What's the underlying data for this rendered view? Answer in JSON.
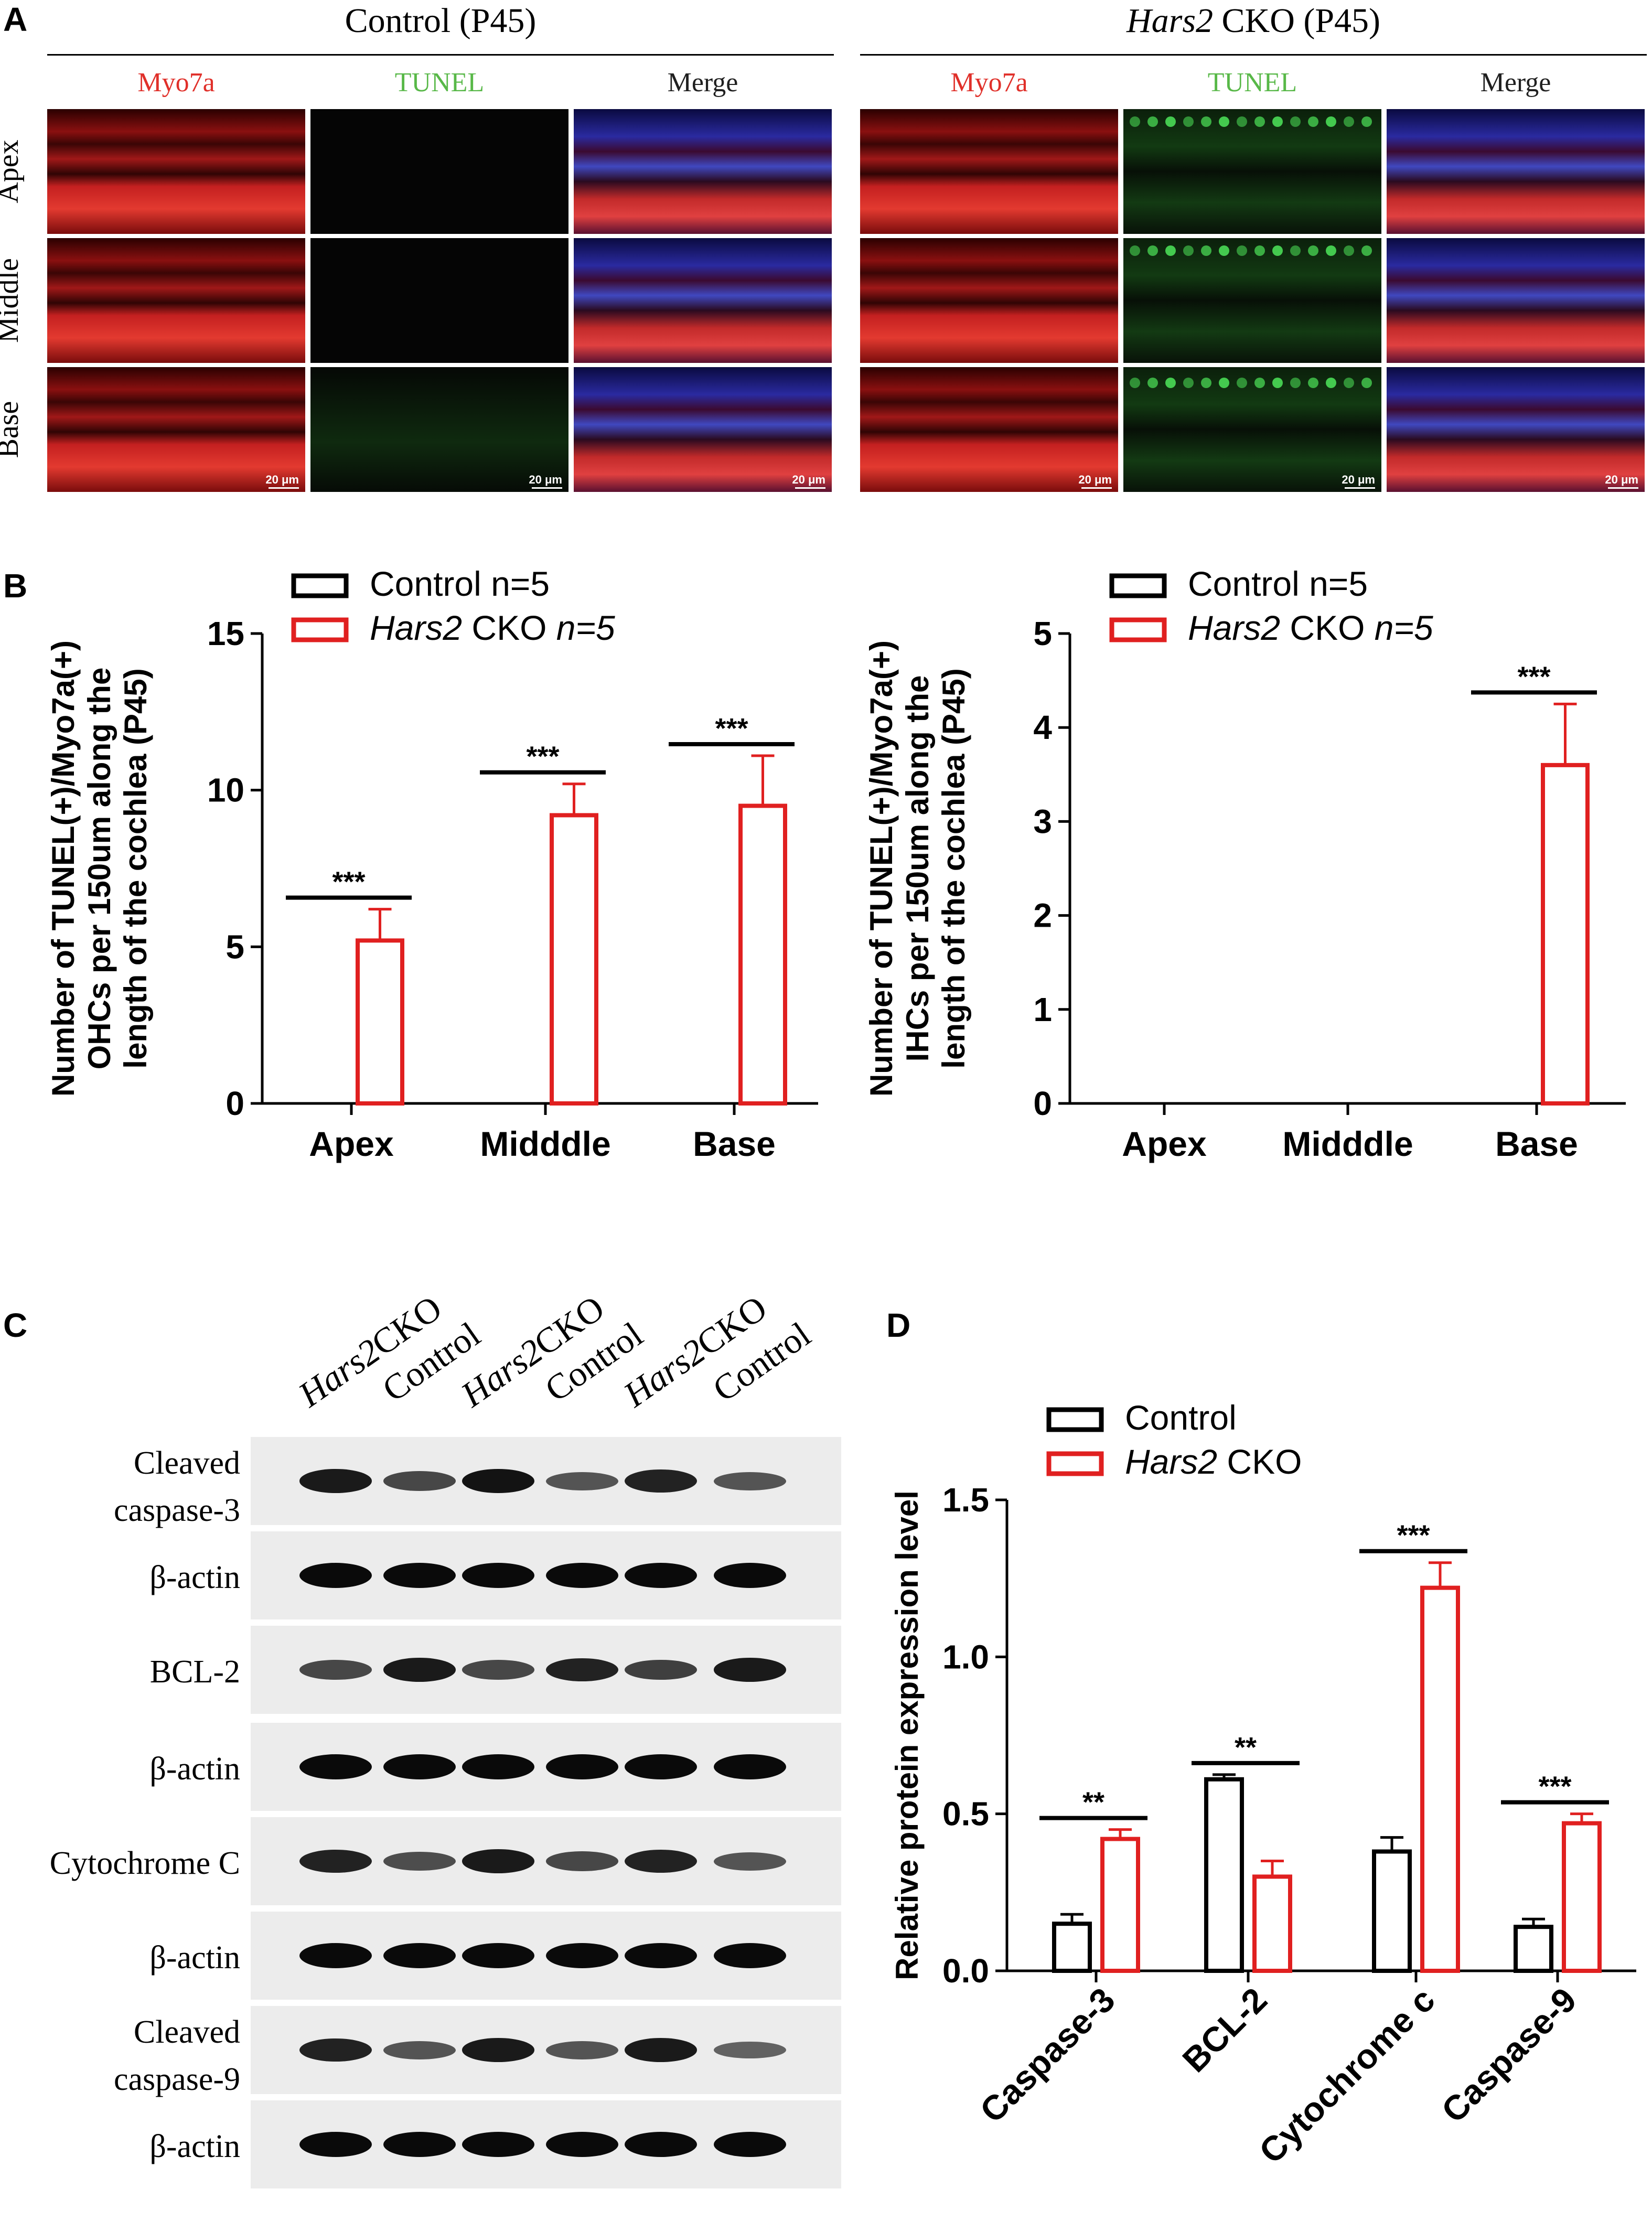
{
  "panels": {
    "a": "A",
    "b": "B",
    "c": "C",
    "d": "D"
  },
  "panel_a": {
    "groups": [
      {
        "title_plain": "Control (P45)"
      },
      {
        "title_italic": "Hars2",
        "title_rest": " CKO (P45)"
      }
    ],
    "columns": [
      "Myo7a",
      "TUNEL",
      "Merge"
    ],
    "rows": [
      "Apex",
      "Middle",
      "Base"
    ],
    "scale_bar": "20 μm",
    "colors": {
      "myo7a": "#e0302a",
      "tunel": "#58b848",
      "merge": "#202020"
    }
  },
  "panel_c": {
    "lanes": [
      {
        "italic": "Hars2",
        "rest": "CKO"
      },
      {
        "italic": "",
        "rest": "Control"
      },
      {
        "italic": "Hars2",
        "rest": "CKO"
      },
      {
        "italic": "",
        "rest": "Control"
      },
      {
        "italic": "Hars2",
        "rest": "CKO"
      },
      {
        "italic": "",
        "rest": "Control"
      }
    ],
    "blots": [
      {
        "label_line1": "Cleaved",
        "label_line2": "caspase-3",
        "intensity": [
          0.9,
          0.6,
          0.95,
          0.5,
          0.85,
          0.5
        ]
      },
      {
        "label_line1": "β-actin",
        "label_line2": "",
        "intensity": [
          1,
          1,
          1,
          1,
          1,
          1
        ]
      },
      {
        "label_line1": "BCL-2",
        "label_line2": "",
        "intensity": [
          0.6,
          0.9,
          0.6,
          0.85,
          0.65,
          0.9
        ]
      },
      {
        "label_line1": "β-actin",
        "label_line2": "",
        "intensity": [
          1,
          1,
          1,
          1,
          1,
          1
        ]
      },
      {
        "label_line1": "Cytochrome C",
        "label_line2": "",
        "intensity": [
          0.85,
          0.55,
          0.9,
          0.6,
          0.85,
          0.5
        ]
      },
      {
        "label_line1": "β-actin",
        "label_line2": "",
        "intensity": [
          1,
          1,
          1,
          1,
          1,
          1
        ]
      },
      {
        "label_line1": "Cleaved",
        "label_line2": "caspase-9",
        "intensity": [
          0.85,
          0.5,
          0.9,
          0.5,
          0.9,
          0.4
        ]
      },
      {
        "label_line1": "β-actin",
        "label_line2": "",
        "intensity": [
          1,
          1,
          1,
          1,
          1,
          1
        ]
      }
    ]
  },
  "chart_data": [
    {
      "type": "bar",
      "ylabel_lines": [
        "Number of TUNEL(+)/Myo7a(+)",
        "OHCs per 150um along the",
        "length of the cochlea (P45)"
      ],
      "categories": [
        "Apex",
        "Midddle",
        "Base"
      ],
      "series": [
        {
          "name": "Control n=5",
          "name_italic": "",
          "name_rest": "Control n=5",
          "color": "#000000",
          "values": [
            0,
            0,
            0
          ],
          "errors": [
            0,
            0,
            0
          ]
        },
        {
          "name": "Hars2 CKO n=5",
          "name_italic": "Hars2",
          "name_rest": " CKO ",
          "name_italic2": "n=5",
          "color": "#e02020",
          "values": [
            5.2,
            9.2,
            9.5
          ],
          "errors": [
            1.0,
            1.0,
            1.6
          ]
        }
      ],
      "ylim": [
        0,
        15
      ],
      "yticks": [
        0,
        5,
        10,
        15
      ],
      "significance": [
        "***",
        "***",
        "***"
      ]
    },
    {
      "type": "bar",
      "ylabel_lines": [
        "Number of TUNEL(+)/Myo7a(+)",
        "IHCs per 150um along the",
        "length of the cochlea (P45)"
      ],
      "categories": [
        "Apex",
        "Midddle",
        "Base"
      ],
      "series": [
        {
          "name": "Control n=5",
          "name_italic": "",
          "name_rest": "Control n=5",
          "color": "#000000",
          "values": [
            0,
            0,
            0
          ],
          "errors": [
            0,
            0,
            0
          ]
        },
        {
          "name": "Hars2 CKO n=5",
          "name_italic": "Hars2",
          "name_rest": " CKO ",
          "name_italic2": "n=5",
          "color": "#e02020",
          "values": [
            0,
            0,
            3.6
          ],
          "errors": [
            0,
            0,
            0.65
          ]
        }
      ],
      "ylim": [
        0,
        5
      ],
      "yticks": [
        0,
        1,
        2,
        3,
        4,
        5
      ],
      "significance": [
        "",
        "",
        "***"
      ]
    },
    {
      "type": "bar",
      "ylabel_lines": [
        "Relative protein expression level"
      ],
      "categories": [
        "Caspase-3",
        "BCL-2",
        "Cytochrome c",
        "Caspase-9"
      ],
      "series": [
        {
          "name": "Control",
          "name_italic": "",
          "name_rest": "Control",
          "color": "#000000",
          "values": [
            0.15,
            0.61,
            0.38,
            0.14
          ],
          "errors": [
            0.03,
            0.015,
            0.045,
            0.025
          ]
        },
        {
          "name": "Hars2 CKO",
          "name_italic": "Hars2",
          "name_rest": " CKO",
          "name_italic2": "",
          "color": "#e02020",
          "values": [
            0.42,
            0.3,
            1.22,
            0.47
          ],
          "errors": [
            0.03,
            0.05,
            0.08,
            0.03
          ]
        }
      ],
      "ylim": [
        0,
        1.5
      ],
      "yticks": [
        "0.0",
        "0.5",
        "1.0",
        "1.5"
      ],
      "significance": [
        "**",
        "**",
        "***",
        "***"
      ]
    }
  ]
}
